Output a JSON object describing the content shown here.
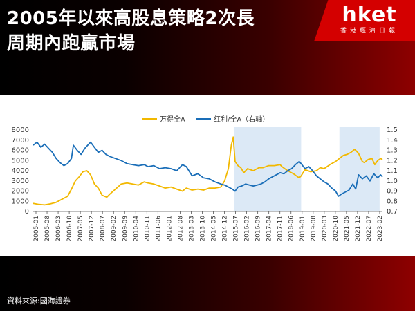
{
  "header": {
    "title_line1": "2005年以來高股息策略2次長",
    "title_line2": "周期內跑贏市場"
  },
  "brand": {
    "logo": "hket",
    "subtitle": "香港經濟日報"
  },
  "footer": {
    "source": "資料來源:國海證券"
  },
  "colors": {
    "wind_all_a": "#f2b800",
    "ratio": "#1a6eb8",
    "highlight": "#dce9f6",
    "accent_red": "#d40000"
  },
  "chart_data": {
    "type": "line",
    "title": "",
    "legend_position": "top-center",
    "grid": false,
    "x_ticks": [
      "2005-01",
      "2005-08",
      "2006-03",
      "2006-10",
      "2007-05",
      "2007-12",
      "2008-07",
      "2009-02",
      "2009-09",
      "2010-04",
      "2010-11",
      "2011-06",
      "2012-01",
      "2012-08",
      "2013-03",
      "2013-10",
      "2014-05",
      "2014-12",
      "2015-07",
      "2016-02",
      "2016-09",
      "2017-04",
      "2017-11",
      "2018-06",
      "2019-01",
      "2019-08",
      "2020-03",
      "2020-10",
      "2021-05",
      "2021-12",
      "2022-07",
      "2023-02"
    ],
    "y_left": {
      "range": [
        0,
        8000
      ],
      "ticks": [
        "0",
        "1000",
        "2000",
        "3000",
        "4000",
        "5000",
        "6000",
        "7000",
        "8000"
      ]
    },
    "y_right": {
      "range": [
        0.7,
        1.5
      ],
      "ticks": [
        "0.7",
        "0.8",
        "0.9",
        "1.0",
        "1.1",
        "1.2",
        "1.3",
        "1.4",
        "1.5"
      ]
    },
    "highlight_ranges": [
      {
        "start": 2015.5,
        "end": 2019.0
      },
      {
        "start": 2021.0,
        "end": 2023.1
      }
    ],
    "x_domain": [
      2005.0,
      2023.25
    ],
    "series": [
      {
        "name": "万得全A",
        "axis": "left",
        "x": [
          2005.0,
          2005.3,
          2005.6,
          2005.9,
          2006.2,
          2006.5,
          2006.8,
          2007.0,
          2007.2,
          2007.4,
          2007.6,
          2007.8,
          2008.0,
          2008.2,
          2008.4,
          2008.6,
          2008.85,
          2009.0,
          2009.3,
          2009.6,
          2009.9,
          2010.2,
          2010.5,
          2010.8,
          2011.0,
          2011.3,
          2011.6,
          2011.9,
          2012.2,
          2012.5,
          2012.8,
          2013.0,
          2013.3,
          2013.6,
          2013.9,
          2014.2,
          2014.5,
          2014.8,
          2015.0,
          2015.2,
          2015.35,
          2015.45,
          2015.55,
          2015.7,
          2015.85,
          2016.0,
          2016.2,
          2016.5,
          2016.8,
          2017.0,
          2017.3,
          2017.6,
          2017.9,
          2018.0,
          2018.3,
          2018.6,
          2018.9,
          2019.0,
          2019.2,
          2019.5,
          2019.8,
          2020.0,
          2020.2,
          2020.5,
          2020.8,
          2021.0,
          2021.2,
          2021.4,
          2021.6,
          2021.8,
          2022.0,
          2022.2,
          2022.3,
          2022.5,
          2022.7,
          2022.85,
          2023.0,
          2023.15,
          2023.25
        ],
        "y": [
          800,
          700,
          650,
          750,
          900,
          1200,
          1500,
          2200,
          3000,
          3400,
          3900,
          4000,
          3600,
          2700,
          2300,
          1600,
          1400,
          1700,
          2200,
          2700,
          2800,
          2700,
          2600,
          2900,
          2800,
          2700,
          2500,
          2300,
          2400,
          2200,
          2000,
          2300,
          2100,
          2200,
          2100,
          2300,
          2300,
          2400,
          3000,
          4200,
          6500,
          7300,
          4900,
          4500,
          4300,
          3800,
          4200,
          4000,
          4300,
          4300,
          4500,
          4500,
          4600,
          4400,
          4000,
          3700,
          3300,
          3500,
          4100,
          3900,
          4000,
          4300,
          4200,
          4600,
          4900,
          5200,
          5500,
          5600,
          5800,
          6100,
          5700,
          4900,
          4800,
          5100,
          5200,
          4600,
          5000,
          5200,
          5100
        ]
      },
      {
        "name": "红利/全A（右轴）",
        "axis": "right",
        "x": [
          2005.0,
          2005.2,
          2005.4,
          2005.6,
          2005.8,
          2006.0,
          2006.2,
          2006.4,
          2006.6,
          2006.8,
          2007.0,
          2007.1,
          2007.3,
          2007.5,
          2007.7,
          2007.9,
          2008.0,
          2008.2,
          2008.4,
          2008.6,
          2008.8,
          2009.0,
          2009.3,
          2009.6,
          2009.9,
          2010.2,
          2010.5,
          2010.8,
          2011.0,
          2011.3,
          2011.6,
          2011.9,
          2012.2,
          2012.5,
          2012.8,
          2013.0,
          2013.3,
          2013.6,
          2013.9,
          2014.2,
          2014.5,
          2014.8,
          2015.0,
          2015.2,
          2015.4,
          2015.55,
          2015.7,
          2015.9,
          2016.1,
          2016.3,
          2016.5,
          2016.7,
          2016.9,
          2017.1,
          2017.3,
          2017.5,
          2017.7,
          2017.9,
          2018.1,
          2018.3,
          2018.5,
          2018.7,
          2018.9,
          2019.0,
          2019.2,
          2019.4,
          2019.6,
          2019.8,
          2020.0,
          2020.2,
          2020.4,
          2020.6,
          2020.8,
          2020.95,
          2021.1,
          2021.3,
          2021.5,
          2021.7,
          2021.85,
          2022.0,
          2022.2,
          2022.4,
          2022.6,
          2022.8,
          2023.0,
          2023.15,
          2023.25
        ],
        "y": [
          1.35,
          1.38,
          1.33,
          1.36,
          1.32,
          1.28,
          1.22,
          1.18,
          1.15,
          1.17,
          1.22,
          1.35,
          1.3,
          1.26,
          1.32,
          1.36,
          1.38,
          1.33,
          1.28,
          1.3,
          1.26,
          1.24,
          1.22,
          1.2,
          1.17,
          1.16,
          1.15,
          1.16,
          1.14,
          1.15,
          1.12,
          1.13,
          1.12,
          1.1,
          1.16,
          1.14,
          1.05,
          1.07,
          1.03,
          1.02,
          0.99,
          0.97,
          0.96,
          0.94,
          0.92,
          0.9,
          0.94,
          0.95,
          0.97,
          0.96,
          0.95,
          0.96,
          0.97,
          0.99,
          1.02,
          1.04,
          1.06,
          1.08,
          1.07,
          1.1,
          1.12,
          1.16,
          1.19,
          1.17,
          1.12,
          1.14,
          1.1,
          1.05,
          1.02,
          0.99,
          0.97,
          0.93,
          0.9,
          0.85,
          0.87,
          0.89,
          0.91,
          0.97,
          0.92,
          1.06,
          1.02,
          1.05,
          1.0,
          1.07,
          1.03,
          1.06,
          1.04
        ]
      }
    ]
  }
}
